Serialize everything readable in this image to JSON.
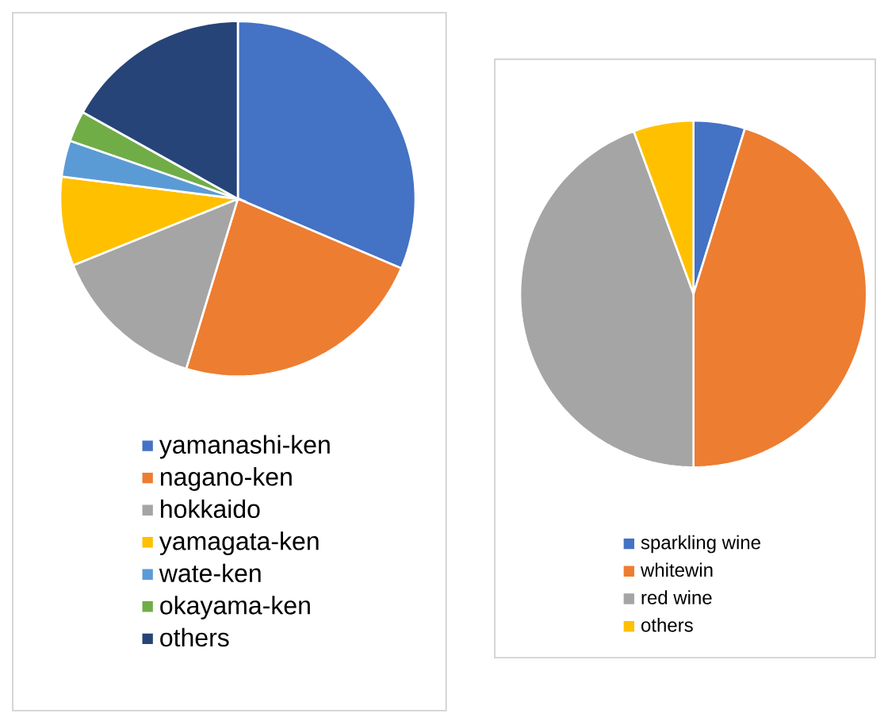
{
  "chart_data": [
    {
      "type": "pie",
      "categories": [
        "yamanashi-ken",
        "nagano-ken",
        "hokkaido",
        "yamagata-ken",
        "wate-ken",
        "okayama-ken",
        "others"
      ],
      "values": [
        31.4,
        23.3,
        14.2,
        8.1,
        3.3,
        2.8,
        16.9
      ],
      "colors": [
        "#4472c4",
        "#ed7d31",
        "#a5a5a5",
        "#ffc000",
        "#5b9bd5",
        "#70ad47",
        "#264478"
      ],
      "legend": "bottom"
    },
    {
      "type": "pie",
      "categories": [
        "sparkling wine",
        "whitewin",
        "red wine",
        "others"
      ],
      "values": [
        4.8,
        45.2,
        44.4,
        5.6
      ],
      "colors": [
        "#4472c4",
        "#ed7d31",
        "#a5a5a5",
        "#ffc000"
      ],
      "legend": "bottom"
    }
  ]
}
